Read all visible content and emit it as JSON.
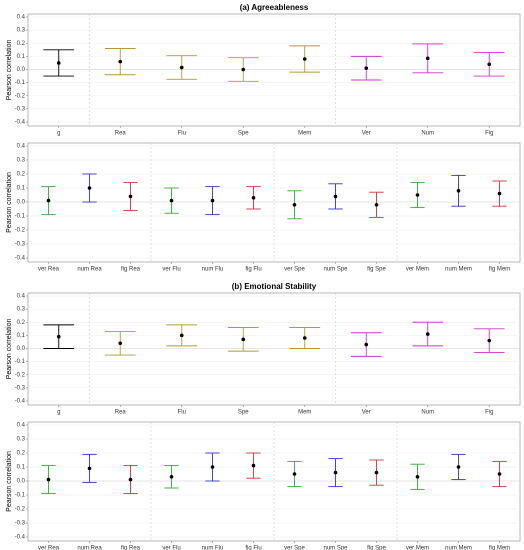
{
  "chart_data": [
    {
      "type": "errorbar",
      "title": "(a) Agreeableness",
      "ylabel": "Pearson correlation",
      "categories": [
        "g",
        "Rea",
        "Flu",
        "Spe",
        "Mem",
        "Ver",
        "Num",
        "Fig"
      ],
      "values": [
        0.05,
        0.06,
        0.015,
        0.0,
        0.08,
        0.01,
        0.085,
        0.04
      ],
      "errors": [
        0.1,
        0.1,
        0.09,
        0.09,
        0.1,
        0.09,
        0.11,
        0.09
      ],
      "colors": [
        "#000000",
        "#b8962e",
        "#b8962e",
        "#b8962e",
        "#b8962e",
        "#cc33cc",
        "#cc33cc",
        "#cc33cc"
      ],
      "dividers": [
        1,
        5
      ],
      "ylim": [
        -0.4,
        0.4
      ],
      "yticks": [
        -0.4,
        -0.3,
        -0.2,
        -0.1,
        {
          "value": 0,
          "label": "0.0"
        },
        0.1,
        0.2,
        0.3,
        0.4
      ],
      "grid": true
    },
    {
      "type": "errorbar",
      "ylabel": "Pearson correlation",
      "categories": [
        "ver Rea",
        "num Rea",
        "fig Rea",
        "ver Flu",
        "num Flu",
        "fig Flu",
        "ver Spe",
        "num Spe",
        "fig Spe",
        "ver Mem",
        "num Mem",
        "fig Mem"
      ],
      "values": [
        0.01,
        0.1,
        0.04,
        0.01,
        0.01,
        0.03,
        -0.02,
        0.04,
        -0.02,
        0.05,
        0.08,
        0.06
      ],
      "errors": [
        0.1,
        0.1,
        0.1,
        0.09,
        0.1,
        0.08,
        0.1,
        0.09,
        0.09,
        0.09,
        0.11,
        0.09
      ],
      "colors": [
        "#33aa33",
        "#3333cc",
        "#cc3333",
        "#33aa33",
        "#3333cc",
        "#cc3333",
        "#33aa33",
        "#3333cc",
        "#cc3333",
        "#33aa33",
        "#3333cc",
        "#cc3333"
      ],
      "dividers": [
        3,
        6,
        9
      ],
      "ylim": [
        -0.4,
        0.4
      ],
      "yticks": [
        -0.4,
        -0.3,
        -0.2,
        -0.1,
        {
          "value": 0,
          "label": "0.0"
        },
        0.1,
        0.2,
        0.3,
        0.4
      ],
      "grid": true
    },
    {
      "type": "errorbar",
      "title": "(b) Emotional Stability",
      "ylabel": "Pearson correlation",
      "categories": [
        "g",
        "Rea",
        "Flu",
        "Spe",
        "Mem",
        "Ver",
        "Num",
        "Fig"
      ],
      "values": [
        0.09,
        0.04,
        0.1,
        0.07,
        0.08,
        0.03,
        0.11,
        0.06
      ],
      "errors": [
        0.09,
        0.09,
        0.08,
        0.09,
        0.08,
        0.09,
        0.09,
        0.09
      ],
      "colors": [
        "#000000",
        "#b8962e",
        "#b8962e",
        "#b8962e",
        "#b8962e",
        "#cc33cc",
        "#cc33cc",
        "#cc33cc"
      ],
      "dividers": [
        1,
        5
      ],
      "ylim": [
        -0.4,
        0.4
      ],
      "yticks": [
        -0.4,
        -0.3,
        -0.2,
        -0.1,
        {
          "value": 0,
          "label": "0.0"
        },
        0.1,
        0.2,
        0.3,
        0.4
      ],
      "grid": true
    },
    {
      "type": "errorbar",
      "ylabel": "Pearson correlation",
      "categories": [
        "ver Rea",
        "num Rea",
        "fig Rea",
        "ver Flu",
        "num Flu",
        "fig Flu",
        "ver Spe",
        "num Spe",
        "fig Spe",
        "ver Mem",
        "num Mem",
        "fig Mem"
      ],
      "values": [
        0.01,
        0.09,
        0.01,
        0.03,
        0.1,
        0.11,
        0.05,
        0.06,
        0.06,
        0.03,
        0.1,
        0.05
      ],
      "errors": [
        0.1,
        0.1,
        0.1,
        0.08,
        0.1,
        0.09,
        0.09,
        0.1,
        0.09,
        0.09,
        0.09,
        0.09
      ],
      "colors": [
        "#33aa33",
        "#3333cc",
        "#cc3333",
        "#33aa33",
        "#3333cc",
        "#cc3333",
        "#33aa33",
        "#3333cc",
        "#cc3333",
        "#33aa33",
        "#3333cc",
        "#cc3333"
      ],
      "dividers": [
        3,
        6,
        9
      ],
      "ylim": [
        -0.4,
        0.4
      ],
      "yticks": [
        -0.4,
        -0.3,
        -0.2,
        -0.1,
        {
          "value": 0,
          "label": "0.0"
        },
        0.1,
        0.2,
        0.3,
        0.4
      ],
      "grid": true
    }
  ]
}
